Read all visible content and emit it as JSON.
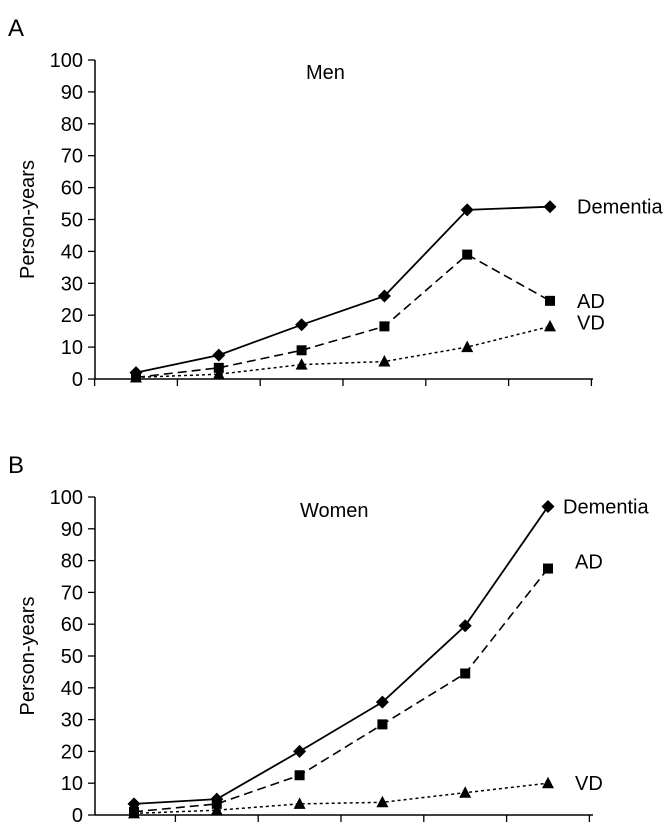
{
  "chart_data": [
    {
      "type": "line",
      "panel": "A",
      "title": "Men",
      "ylabel": "Person-years",
      "ylim": [
        0,
        100
      ],
      "yticks": [
        "0",
        "10",
        "20",
        "30",
        "40",
        "50",
        "60",
        "70",
        "80",
        "90",
        "100"
      ],
      "x": [
        1,
        2,
        3,
        4,
        5,
        6
      ],
      "series": [
        {
          "name": "Dementia",
          "marker": "diamond",
          "dash": "solid",
          "values": [
            2,
            7.5,
            17,
            26,
            53,
            54
          ]
        },
        {
          "name": "AD",
          "marker": "square",
          "dash": "dashed",
          "values": [
            0.5,
            3.5,
            9,
            16.5,
            39,
            24.5
          ]
        },
        {
          "name": "VD",
          "marker": "triangle",
          "dash": "dotted",
          "values": [
            0.5,
            1.5,
            4.5,
            5.5,
            10,
            16.5
          ]
        }
      ]
    },
    {
      "type": "line",
      "panel": "B",
      "title": "Women",
      "ylabel": "Person-years",
      "ylim": [
        0,
        100
      ],
      "yticks": [
        "0",
        "10",
        "20",
        "30",
        "40",
        "50",
        "60",
        "70",
        "80",
        "90",
        "100"
      ],
      "x": [
        1,
        2,
        3,
        4,
        5,
        6
      ],
      "series": [
        {
          "name": "Dementia",
          "marker": "diamond",
          "dash": "solid",
          "values": [
            3.5,
            5,
            20,
            35.5,
            59.5,
            97
          ]
        },
        {
          "name": "AD",
          "marker": "square",
          "dash": "dashed",
          "values": [
            1,
            3.5,
            12.5,
            28.5,
            44.5,
            77.5
          ]
        },
        {
          "name": "VD",
          "marker": "triangle",
          "dash": "dotted",
          "values": [
            0.5,
            1.5,
            3.5,
            4,
            7,
            10
          ]
        }
      ]
    }
  ]
}
